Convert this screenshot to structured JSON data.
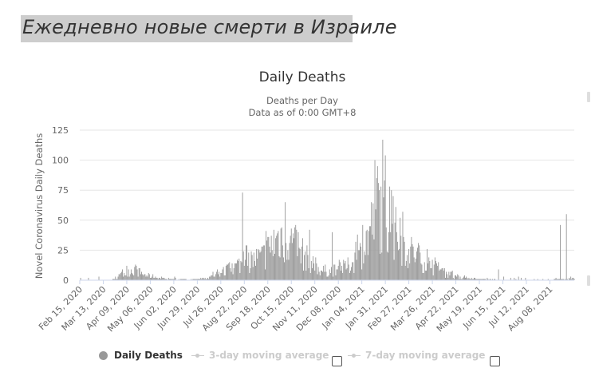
{
  "banner_title": "Ежедневно новые смерти в Израиле",
  "chart_data": {
    "type": "bar",
    "title": "Daily Deaths",
    "subtitle_line1": "Deaths per Day",
    "subtitle_line2": "Data as of 0:00 GMT+8",
    "ylabel": "Novel Coronavirus Daily Deaths",
    "xlabel": "",
    "ylim": [
      0,
      125
    ],
    "yticks": [
      "0",
      "25",
      "50",
      "75",
      "100",
      "125"
    ],
    "grid": true,
    "x_start": "2020-02-15",
    "x_end": "2021-09-05",
    "xtick_labels": [
      "Feb 15, 2020",
      "Mar 13, 2020",
      "Apr 09, 2020",
      "May 06, 2020",
      "Jun 02, 2020",
      "Jun 29, 2020",
      "Jul 26, 2020",
      "Aug 22, 2020",
      "Sep 18, 2020",
      "Oct 15, 2020",
      "Nov 11, 2020",
      "Dec 08, 2020",
      "Jan 04, 2021",
      "Jan 31, 2021",
      "Feb 27, 2021",
      "Mar 26, 2021",
      "Apr 22, 2021",
      "May 19, 2021",
      "Jun 15, 2021",
      "Jul 12, 2021",
      "Aug 08, 2021"
    ],
    "bar_color": "#999999",
    "weekly_average_deaths": [
      0,
      0,
      0,
      0,
      0,
      0,
      2,
      5,
      8,
      9,
      6,
      4,
      3,
      2,
      1,
      1,
      0,
      1,
      0,
      1,
      1,
      2,
      4,
      6,
      8,
      10,
      13,
      15,
      16,
      18,
      20,
      26,
      33,
      38,
      36,
      32,
      26,
      20,
      14,
      10,
      8,
      8,
      9,
      10,
      12,
      16,
      22,
      33,
      48,
      62,
      58,
      46,
      38,
      31,
      26,
      22,
      17,
      14,
      11,
      9,
      6,
      4,
      3,
      2,
      1,
      1,
      1,
      1,
      1,
      0,
      0,
      0,
      0,
      0,
      0,
      0,
      0,
      0,
      1,
      1,
      1,
      2,
      4,
      6,
      9,
      12,
      17
    ],
    "spikes": [
      {
        "date": "2020-08-20",
        "value": 73
      },
      {
        "date": "2021-01-19",
        "value": 100
      },
      {
        "date": "2021-01-22",
        "value": 95
      },
      {
        "date": "2021-08-27",
        "value": 55
      },
      {
        "date": "2021-08-20",
        "value": 46
      },
      {
        "date": "2020-11-05",
        "value": 42
      },
      {
        "date": "2020-12-01",
        "value": 40
      },
      {
        "date": "2021-06-10",
        "value": 9
      }
    ]
  },
  "legend": {
    "series_1": "Daily Deaths",
    "series_2": "3-day moving average",
    "series_3": "7-day moving average"
  },
  "colors": {
    "bar": "#999999",
    "grid": "#e6e6e6",
    "text": "#333333",
    "muted": "#666666",
    "inactive": "#cccccc",
    "banner_bg": "#cdcdcd"
  }
}
